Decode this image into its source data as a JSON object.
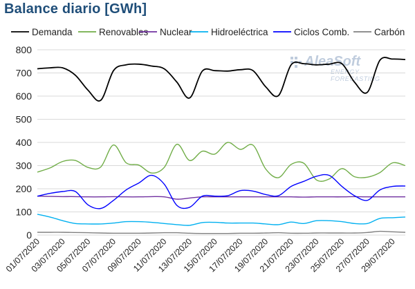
{
  "header": {
    "title": "Balance diario [GWh]"
  },
  "watermark": {
    "name": "AleaSoft",
    "tagline": "ENERGY FORECASTING"
  },
  "chart_data": {
    "type": "line",
    "title": "Balance diario [GWh]",
    "xlabel": "",
    "ylabel": "",
    "ylim": [
      0,
      800
    ],
    "y_ticks": [
      0,
      100,
      200,
      300,
      400,
      500,
      600,
      700,
      800
    ],
    "grid": true,
    "legend_position": "top",
    "x_tick_labels": [
      "01/07/2020",
      "03/07/2020",
      "05/07/2020",
      "07/07/2020",
      "09/07/2020",
      "11/07/2020",
      "13/07/2020",
      "15/07/2020",
      "17/07/2020",
      "19/07/2020",
      "21/07/2020",
      "23/07/2020",
      "25/07/2020",
      "27/07/2020",
      "29/07/2020"
    ],
    "categories": [
      "01/07/2020",
      "02/07/2020",
      "03/07/2020",
      "04/07/2020",
      "05/07/2020",
      "06/07/2020",
      "07/07/2020",
      "08/07/2020",
      "09/07/2020",
      "10/07/2020",
      "11/07/2020",
      "12/07/2020",
      "13/07/2020",
      "14/07/2020",
      "15/07/2020",
      "16/07/2020",
      "17/07/2020",
      "18/07/2020",
      "19/07/2020",
      "20/07/2020",
      "21/07/2020",
      "22/07/2020",
      "23/07/2020",
      "24/07/2020",
      "25/07/2020",
      "26/07/2020",
      "27/07/2020",
      "28/07/2020",
      "29/07/2020",
      "30/07/2020"
    ],
    "series": [
      {
        "name": "Demanda",
        "color": "#000000",
        "values": [
          718,
          722,
          722,
          690,
          625,
          582,
          710,
          735,
          738,
          730,
          718,
          660,
          592,
          708,
          710,
          708,
          714,
          710,
          640,
          602,
          735,
          740,
          735,
          738,
          740,
          660,
          616,
          755,
          760,
          758
        ]
      },
      {
        "name": "Renovables",
        "color": "#70ad47",
        "values": [
          272,
          290,
          318,
          322,
          292,
          294,
          389,
          312,
          302,
          268,
          292,
          392,
          322,
          362,
          350,
          400,
          370,
          388,
          285,
          248,
          305,
          310,
          238,
          242,
          287,
          252,
          250,
          270,
          312,
          300
        ]
      },
      {
        "name": "Nuclear",
        "color": "#7030a0",
        "values": [
          168,
          167,
          166,
          166,
          165,
          165,
          166,
          165,
          165,
          166,
          165,
          155,
          160,
          165,
          165,
          165,
          165,
          165,
          165,
          165,
          165,
          164,
          165,
          165,
          165,
          166,
          165,
          165,
          165,
          165
        ]
      },
      {
        "name": "Hidroeléctrica",
        "color": "#00b0f0",
        "values": [
          90,
          78,
          62,
          50,
          48,
          48,
          52,
          58,
          58,
          55,
          50,
          45,
          42,
          54,
          55,
          52,
          52,
          52,
          48,
          45,
          56,
          50,
          62,
          62,
          58,
          50,
          50,
          72,
          75,
          78
        ]
      },
      {
        "name": "Ciclos Comb.",
        "color": "#0000ff",
        "values": [
          168,
          180,
          188,
          188,
          130,
          115,
          150,
          195,
          225,
          258,
          220,
          128,
          120,
          168,
          168,
          170,
          192,
          190,
          175,
          170,
          210,
          232,
          254,
          258,
          210,
          170,
          150,
          195,
          210,
          212
        ]
      },
      {
        "name": "Carbón",
        "color": "#808080",
        "values": [
          12,
          12,
          12,
          11,
          10,
          9,
          8,
          8,
          8,
          9,
          10,
          10,
          8,
          7,
          7,
          7,
          8,
          8,
          9,
          10,
          8,
          8,
          9,
          9,
          9,
          9,
          11,
          16,
          14,
          12
        ]
      }
    ]
  }
}
